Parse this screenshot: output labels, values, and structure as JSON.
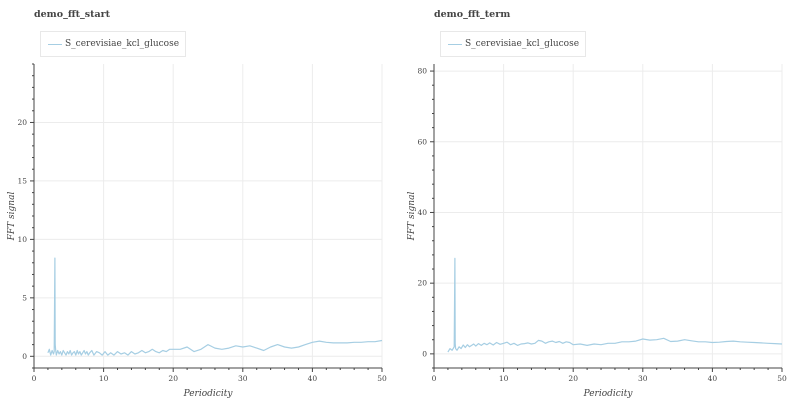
{
  "chart_data": [
    {
      "type": "line",
      "title": "demo_fft_start",
      "xlabel": "Periodicity",
      "ylabel": "FFT signal",
      "xlim": [
        0,
        50
      ],
      "ylim": [
        -1,
        25
      ],
      "x_ticks": [
        0,
        10,
        20,
        30,
        40,
        50
      ],
      "y_ticks": [
        0,
        5,
        10,
        15,
        20
      ],
      "grid": true,
      "legend_position": "top-left",
      "series": [
        {
          "name": "S_cerevisiae_kcl_glucose",
          "color": "#a6cee3",
          "x": [
            2.0,
            2.2,
            2.4,
            2.6,
            2.8,
            2.9,
            3.0,
            3.05,
            3.1,
            3.2,
            3.4,
            3.6,
            3.8,
            4.0,
            4.2,
            4.4,
            4.6,
            4.8,
            5.0,
            5.2,
            5.4,
            5.6,
            5.8,
            6.0,
            6.2,
            6.4,
            6.6,
            6.8,
            7.0,
            7.2,
            7.4,
            7.6,
            7.8,
            8.0,
            8.3,
            8.6,
            9.0,
            9.4,
            9.8,
            10.2,
            10.6,
            11.0,
            11.5,
            12.0,
            12.5,
            13.0,
            13.5,
            14.0,
            14.5,
            15.0,
            15.5,
            16.0,
            16.5,
            17.0,
            17.5,
            18.0,
            18.5,
            19.0,
            19.5,
            20.0,
            21.0,
            22.0,
            23.0,
            24.0,
            25.0,
            26.0,
            27.0,
            28.0,
            29.0,
            30.0,
            31.0,
            32.0,
            33.0,
            34.0,
            35.0,
            36.0,
            37.0,
            38.0,
            39.0,
            40.0,
            41.0,
            42.0,
            43.0,
            44.0,
            45.0,
            46.0,
            47.0,
            48.0,
            49.0,
            50.0
          ],
          "y": [
            0.3,
            0.6,
            0.1,
            0.5,
            0.2,
            0.4,
            8.4,
            1.0,
            0.6,
            0.1,
            0.5,
            0.2,
            0.4,
            0.1,
            0.5,
            0.3,
            0.1,
            0.4,
            0.2,
            0.5,
            0.1,
            0.3,
            0.4,
            0.1,
            0.5,
            0.2,
            0.4,
            0.1,
            0.3,
            0.5,
            0.2,
            0.4,
            0.1,
            0.3,
            0.5,
            0.1,
            0.4,
            0.3,
            0.1,
            0.4,
            0.1,
            0.3,
            0.1,
            0.4,
            0.2,
            0.3,
            0.1,
            0.4,
            0.2,
            0.3,
            0.5,
            0.3,
            0.4,
            0.6,
            0.4,
            0.3,
            0.5,
            0.4,
            0.6,
            0.6,
            0.6,
            0.8,
            0.4,
            0.6,
            1.0,
            0.7,
            0.6,
            0.7,
            0.9,
            0.8,
            0.9,
            0.7,
            0.5,
            0.8,
            1.0,
            0.8,
            0.7,
            0.8,
            1.0,
            1.2,
            1.3,
            1.2,
            1.15,
            1.15,
            1.15,
            1.2,
            1.2,
            1.25,
            1.25,
            1.35
          ]
        }
      ]
    },
    {
      "type": "line",
      "title": "demo_fft_term",
      "xlabel": "Periodicity",
      "ylabel": "FFT signal",
      "xlim": [
        0,
        50
      ],
      "ylim": [
        -4,
        82
      ],
      "x_ticks": [
        0,
        10,
        20,
        30,
        40,
        50
      ],
      "y_ticks": [
        0,
        20,
        40,
        60,
        80
      ],
      "grid": true,
      "legend_position": "top-left",
      "series": [
        {
          "name": "S_cerevisiae_kcl_glucose",
          "color": "#a6cee3",
          "x": [
            2.0,
            2.3,
            2.6,
            2.9,
            3.0,
            3.05,
            3.1,
            3.3,
            3.6,
            3.9,
            4.2,
            4.5,
            4.8,
            5.1,
            5.4,
            5.7,
            6.0,
            6.4,
            6.8,
            7.2,
            7.6,
            8.0,
            8.5,
            9.0,
            9.5,
            10.0,
            10.5,
            11.0,
            11.5,
            12.0,
            12.5,
            13.0,
            13.5,
            14.0,
            14.5,
            15.0,
            15.5,
            16.0,
            16.5,
            17.0,
            17.5,
            18.0,
            18.5,
            19.0,
            19.5,
            20.0,
            21.0,
            22.0,
            23.0,
            24.0,
            25.0,
            26.0,
            27.0,
            28.0,
            29.0,
            30.0,
            31.0,
            32.0,
            33.0,
            34.0,
            35.0,
            36.0,
            37.0,
            38.0,
            39.0,
            40.0,
            41.0,
            42.0,
            43.0,
            44.0,
            45.0,
            46.0,
            47.0,
            48.0,
            49.0,
            50.0
          ],
          "y": [
            0.5,
            1.5,
            1.0,
            2.0,
            27.0,
            3.0,
            1.5,
            1.0,
            2.0,
            1.5,
            2.5,
            1.8,
            2.6,
            2.0,
            2.4,
            2.8,
            2.2,
            2.9,
            2.4,
            3.0,
            2.6,
            3.1,
            2.5,
            3.2,
            2.7,
            3.0,
            3.3,
            2.6,
            3.0,
            2.4,
            2.8,
            2.9,
            3.1,
            2.8,
            3.0,
            3.8,
            3.6,
            3.0,
            3.4,
            3.6,
            3.2,
            3.5,
            3.0,
            3.4,
            3.2,
            2.6,
            2.8,
            2.4,
            2.8,
            2.6,
            3.0,
            3.0,
            3.4,
            3.4,
            3.6,
            4.2,
            3.9,
            4.0,
            4.4,
            3.5,
            3.6,
            4.0,
            3.7,
            3.4,
            3.4,
            3.2,
            3.3,
            3.5,
            3.6,
            3.4,
            3.3,
            3.2,
            3.1,
            3.0,
            2.9,
            2.8
          ]
        }
      ]
    }
  ]
}
